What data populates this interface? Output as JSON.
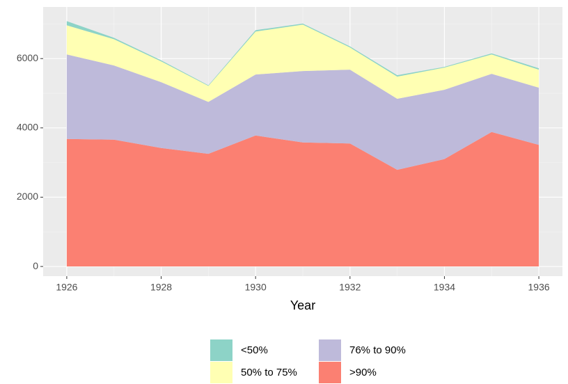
{
  "chart_data": {
    "type": "area",
    "stacked": true,
    "x_label": "Year",
    "x": [
      1926,
      1927,
      1928,
      1929,
      1930,
      1931,
      1932,
      1933,
      1934,
      1935,
      1936
    ],
    "series": [
      {
        "name": "<50%",
        "color": "#8dd3c7",
        "values": [
          120,
          40,
          30,
          20,
          40,
          30,
          30,
          40,
          20,
          30,
          40
        ]
      },
      {
        "name": "50% to 75%",
        "color": "#ffffb3",
        "values": [
          840,
          760,
          600,
          460,
          1240,
          1340,
          640,
          640,
          640,
          560,
          520
        ]
      },
      {
        "name": "76% to 90%",
        "color": "#bebada",
        "values": [
          2440,
          2140,
          1900,
          1500,
          1760,
          2060,
          2130,
          2050,
          2000,
          1680,
          1650
        ]
      },
      {
        "name": ">90%",
        "color": "#fb8072",
        "values": [
          3680,
          3660,
          3420,
          3250,
          3780,
          3580,
          3550,
          2790,
          3100,
          3880,
          3510
        ]
      }
    ],
    "xlim": [
      1925.5,
      1936.5
    ],
    "xticks": [
      1926,
      1928,
      1930,
      1932,
      1934,
      1936
    ],
    "ylim": [
      -280,
      7490
    ],
    "yticks": [
      0,
      2000,
      4000,
      6000
    ],
    "grid": true,
    "legend": "bottom"
  }
}
